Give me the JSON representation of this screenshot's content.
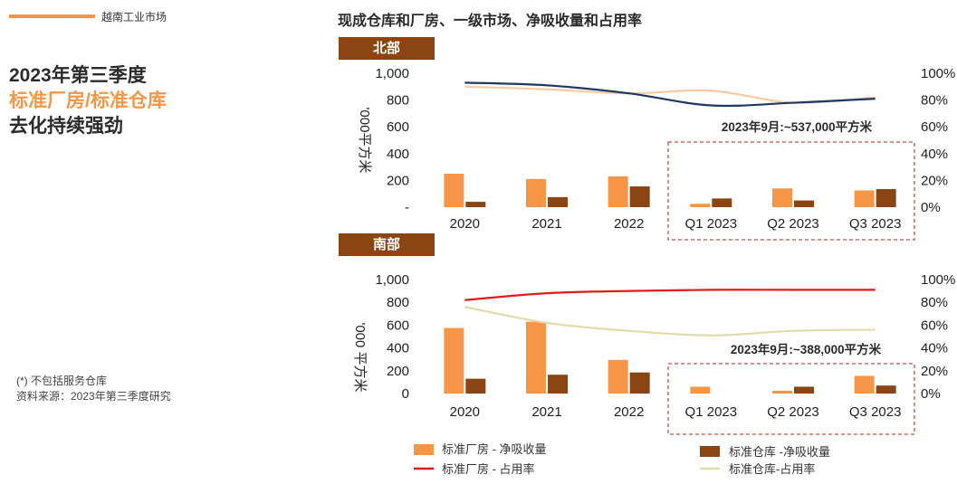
{
  "brand": "越南工业市场",
  "headline": {
    "line1": "2023年第三季度",
    "line2": "标准厂房/标准仓库",
    "line3": "去化持续强劲"
  },
  "footnote": {
    "line1": "(*) 不包括服务仓库",
    "line2": "资料来源：2023年第三季度研究"
  },
  "chart_title": "现成仓库和厂房、一级市场、净吸收量和占用率",
  "colors": {
    "factory_bar": "#f79646",
    "warehouse_bar": "#8b4513",
    "north_factory_line": "#f8cba0",
    "north_warehouse_line": "#1f3864",
    "south_factory_line": "#e31a1c",
    "south_warehouse_line": "#e2dcaa",
    "highlight_box": "#c0504d"
  },
  "chart_data": [
    {
      "type": "bar",
      "region": "北部",
      "categories": [
        "2020",
        "2021",
        "2022",
        "Q1 2023",
        "Q2 2023",
        "Q3 2023"
      ],
      "ylabel": "'000平方米",
      "ylim": [
        0,
        1000
      ],
      "y_ticks": [
        "-",
        "200",
        "400",
        "600",
        "800",
        "1,000"
      ],
      "y2lim": [
        0,
        100
      ],
      "y2_ticks": [
        "0%",
        "20%",
        "40%",
        "60%",
        "80%",
        "100%"
      ],
      "annotation": "2023年9月:~537,000平方米",
      "series": [
        {
          "name": "标准厂房 - 净吸收量",
          "kind": "bar",
          "values": [
            250,
            210,
            230,
            25,
            140,
            125
          ]
        },
        {
          "name": "标准仓库 -净吸收量",
          "kind": "bar",
          "values": [
            40,
            75,
            155,
            65,
            50,
            135
          ]
        },
        {
          "name": "标准厂房 - 占用率",
          "kind": "line",
          "values": [
            90,
            88,
            85,
            87,
            78,
            82
          ]
        },
        {
          "name": "标准仓库-占用率",
          "kind": "line",
          "values": [
            93,
            91,
            85,
            76,
            78,
            81
          ]
        }
      ]
    },
    {
      "type": "bar",
      "region": "南部",
      "categories": [
        "2020",
        "2021",
        "2022",
        "Q1 2023",
        "Q2 2023",
        "Q3 2023"
      ],
      "ylabel": "'000 平方米",
      "ylim": [
        0,
        1000
      ],
      "y_ticks": [
        "0",
        "200",
        "400",
        "600",
        "800",
        "1,000"
      ],
      "y2lim": [
        0,
        100
      ],
      "y2_ticks": [
        "0%",
        "20%",
        "40%",
        "60%",
        "80%",
        "100%"
      ],
      "annotation": "2023年9月:~388,000平方米",
      "series": [
        {
          "name": "标准厂房 - 净吸收量",
          "kind": "bar",
          "values": [
            575,
            630,
            295,
            60,
            25,
            155
          ]
        },
        {
          "name": "标准仓库 -净吸收量",
          "kind": "bar",
          "values": [
            130,
            165,
            185,
            0,
            60,
            70
          ]
        },
        {
          "name": "标准厂房 - 占用率",
          "kind": "line",
          "values": [
            82,
            88,
            90,
            91,
            91,
            91
          ]
        },
        {
          "name": "标准仓库-占用率",
          "kind": "line",
          "values": [
            76,
            62,
            55,
            51,
            55,
            56
          ]
        }
      ]
    }
  ],
  "legend": {
    "factory_bar": "标准厂房 - 净吸收量",
    "warehouse_bar": "标准仓库 -净吸收量",
    "factory_line": "标准厂房 - 占用率",
    "warehouse_line": "标准仓库-占用率"
  }
}
